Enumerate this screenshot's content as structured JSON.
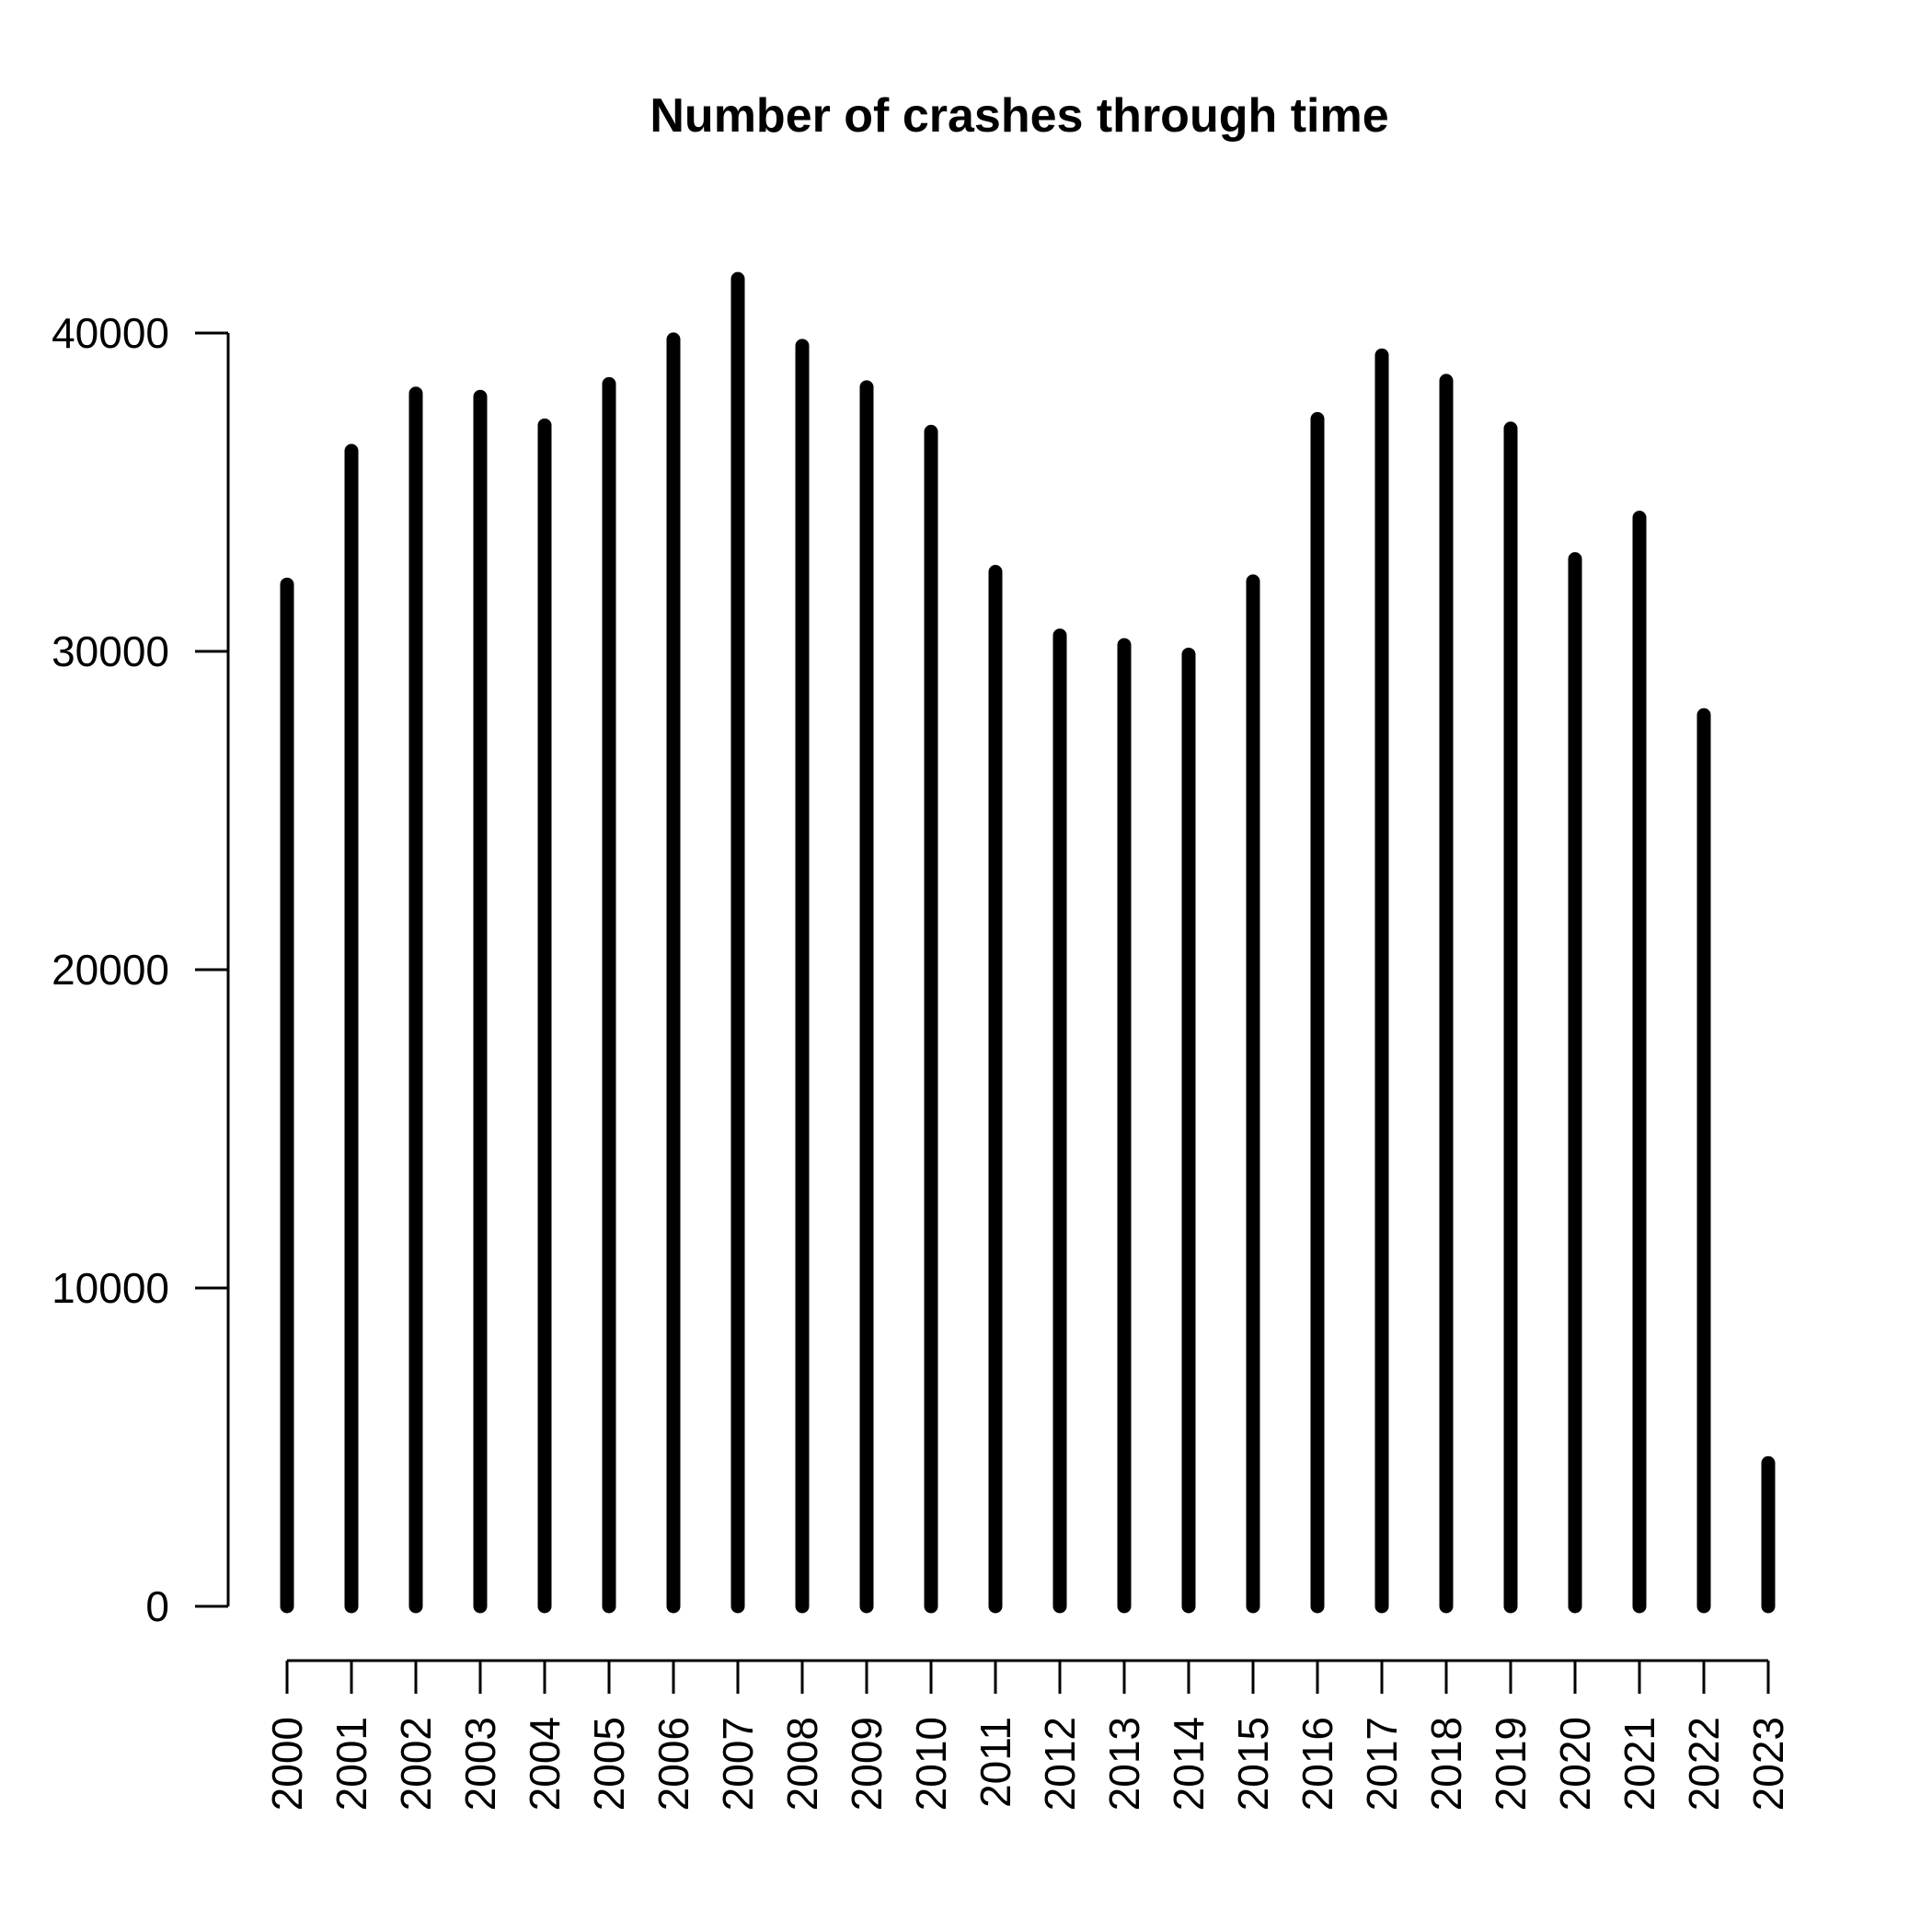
{
  "chart_data": {
    "type": "bar",
    "title": "Number of crashes through time",
    "xlabel": "",
    "ylabel": "",
    "categories": [
      "2000",
      "2001",
      "2002",
      "2003",
      "2004",
      "2005",
      "2006",
      "2007",
      "2008",
      "2009",
      "2010",
      "2011",
      "2012",
      "2013",
      "2014",
      "2015",
      "2016",
      "2017",
      "2018",
      "2019",
      "2020",
      "2021",
      "2022",
      "2023"
    ],
    "values": [
      32100,
      36300,
      38100,
      38000,
      37100,
      38400,
      39800,
      41700,
      39600,
      38300,
      36900,
      32500,
      30500,
      30200,
      29900,
      32200,
      37300,
      39300,
      38500,
      37000,
      32900,
      34200,
      28000,
      4500
    ],
    "ylim": [
      0,
      42000
    ],
    "yticks": [
      0,
      10000,
      20000,
      30000,
      40000
    ],
    "grid": false,
    "legend": "none",
    "bar_style": "vertical lines",
    "color": "#000000"
  }
}
